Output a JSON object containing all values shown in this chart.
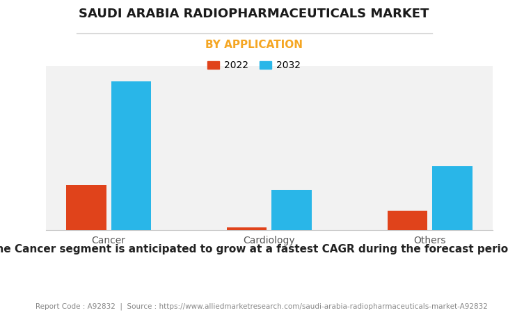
{
  "title": "SAUDI ARABIA RADIOPHARMACEUTICALS MARKET",
  "subtitle": "BY APPLICATION",
  "subtitle_color": "#f5a623",
  "categories": [
    "Cancer",
    "Cardiology",
    "Others"
  ],
  "series": [
    {
      "label": "2022",
      "color": "#e0431b",
      "values": [
        30,
        1.5,
        13
      ]
    },
    {
      "label": "2032",
      "color": "#29b6e8",
      "values": [
        100,
        27,
        43
      ]
    }
  ],
  "ylim": [
    0,
    110
  ],
  "bar_width": 0.25,
  "background_color": "#ffffff",
  "plot_bg_color": "#f2f2f2",
  "grid_color": "#ffffff",
  "footer_text": "Report Code : A92832  |  Source : https://www.alliedmarketresearch.com/saudi-arabia-radiopharmaceuticals-market-A92832",
  "annotation": "The Cancer segment is anticipated to grow at a fastest CAGR during the forecast period.",
  "title_fontsize": 13,
  "subtitle_fontsize": 11,
  "tick_fontsize": 10,
  "legend_fontsize": 10,
  "annotation_fontsize": 11,
  "footer_fontsize": 7.5
}
